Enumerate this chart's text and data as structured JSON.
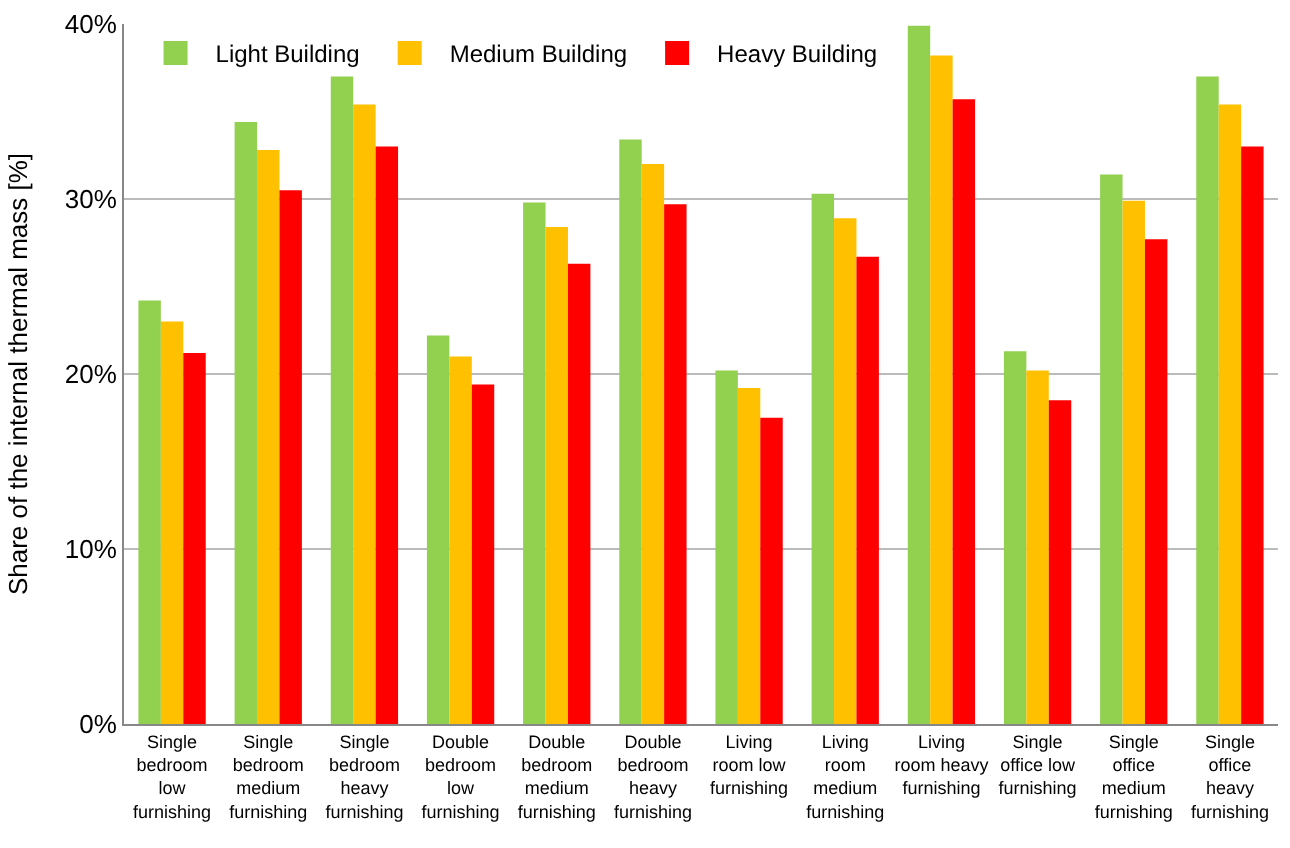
{
  "chart_data": {
    "type": "bar",
    "ylabel": "Share of the internal thermal mass [%]",
    "categories": [
      "Single bedroom low furnishing",
      "Single bedroom medium furnishing",
      "Single bedroom heavy furnishing",
      "Double bedroom low furnishing",
      "Double bedroom medium furnishing",
      "Double bedroom heavy furnishing",
      "Living room low furnishing",
      "Living room medium furnishing",
      "Living room heavy furnishing",
      "Single office low furnishing",
      "Single office medium furnishing",
      "Single office heavy furnishing"
    ],
    "series": [
      {
        "name": "Light Building",
        "color": "#92d050",
        "values": [
          24.2,
          34.4,
          37.0,
          22.2,
          29.8,
          33.4,
          20.2,
          30.3,
          39.9,
          21.3,
          31.4,
          37.0
        ]
      },
      {
        "name": "Medium Building",
        "color": "#ffc000",
        "values": [
          23.0,
          32.8,
          35.4,
          21.0,
          28.4,
          32.0,
          19.2,
          28.9,
          38.2,
          20.2,
          29.9,
          35.4
        ]
      },
      {
        "name": "Heavy Building",
        "color": "#ff0000",
        "values": [
          21.2,
          30.5,
          33.0,
          19.4,
          26.3,
          29.7,
          17.5,
          26.7,
          35.7,
          18.5,
          27.7,
          33.0
        ]
      }
    ],
    "ylim": [
      0,
      40
    ],
    "yticks": [
      {
        "value": 0,
        "label": "0%"
      },
      {
        "value": 10,
        "label": "10%"
      },
      {
        "value": 20,
        "label": "20%"
      },
      {
        "value": 30,
        "label": "30%"
      },
      {
        "value": 40,
        "label": "40%"
      }
    ],
    "grid": "y",
    "legend": "top left"
  }
}
